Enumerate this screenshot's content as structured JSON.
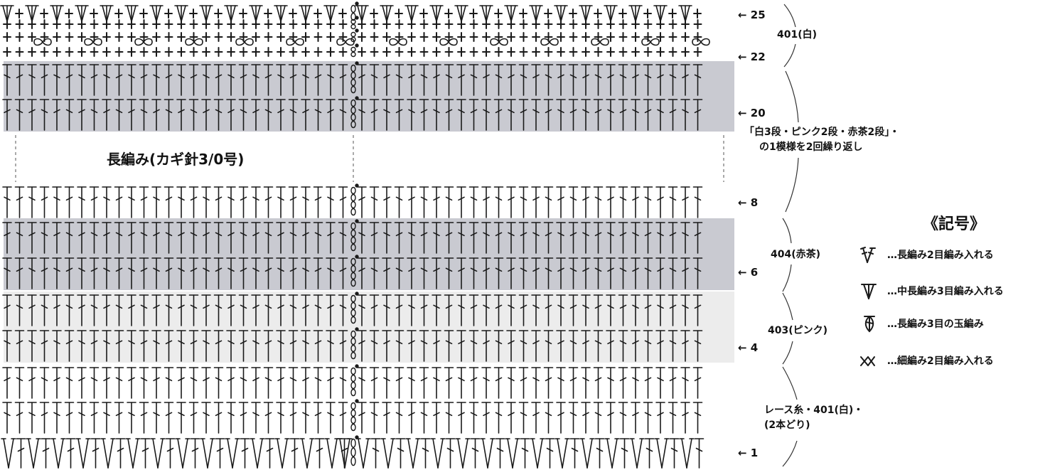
{
  "center_label": "長編み(カギ針3/0号)",
  "row_markers": [
    {
      "text": "← 25",
      "row": 25
    },
    {
      "text": "← 22",
      "row": 22
    },
    {
      "text": "← 20",
      "row": 20
    },
    {
      "text": "← 8",
      "row": 8
    },
    {
      "text": "← 6",
      "row": 6
    },
    {
      "text": "← 4",
      "row": 4
    },
    {
      "text": "← 1",
      "row": 1
    }
  ],
  "annotations": {
    "white_top": "401(白)",
    "repeat_line1": "「白3段・ピンク2段・赤茶2段」・",
    "repeat_line2": "の1模様を2回繰り返し",
    "red_brown": "404(赤茶)",
    "pink": "403(ピンク)",
    "yarn_line1": "レース糸・401(白)・",
    "yarn_line2": "(2本どり)"
  },
  "legend": {
    "title": "《記号》",
    "items": [
      {
        "icon": "dc-2-inc-icon",
        "text": "…長編み2目編み入れる"
      },
      {
        "icon": "hdc-3-inc-icon",
        "text": "…中長編み3目編み入れる"
      },
      {
        "icon": "dc-3-cluster-icon",
        "text": "…長編み3目の玉編み"
      },
      {
        "icon": "sc-2-inc-icon",
        "text": "…細編み2目編み入れる"
      }
    ]
  },
  "colors": {
    "red_brown_band": "#c9cad1",
    "pink_band": "#ececec",
    "symbol": "#1a1a1a"
  }
}
